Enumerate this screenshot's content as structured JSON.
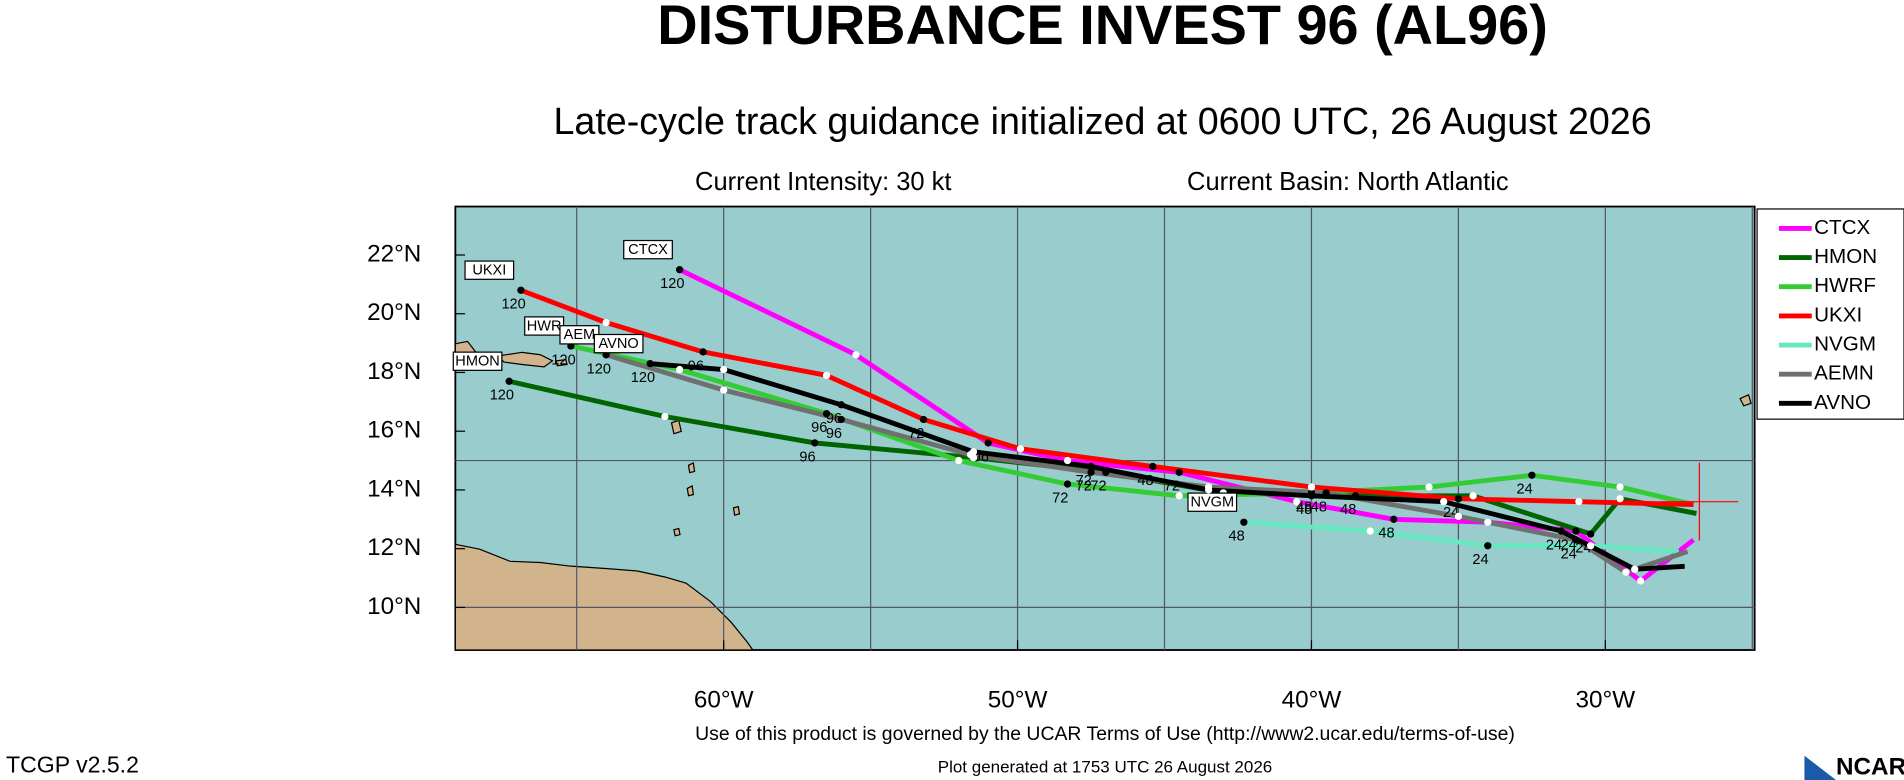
{
  "chart_data": {
    "type": "track_map",
    "title": "DISTURBANCE INVEST 96 (AL96)",
    "subtitle": "Late-cycle track guidance initialized at 0600 UTC, 26 August 2026",
    "intensity": "Current Intensity: 30 kt",
    "basin": "Current Basin: North Atlantic",
    "terms": "Use of this product is governed by the UCAR Terms of Use (http://www2.ucar.edu/terms-of-use)",
    "version": "TCGP v2.5.2",
    "generated": "Plot generated at 1753 UTC   26 August 2026",
    "logo": "NCAR",
    "xlim": [
      -69.13,
      -24.92
    ],
    "ylim": [
      8.55,
      23.65
    ],
    "xticks": [
      {
        "value": -60,
        "label": "60°W"
      },
      {
        "value": -50,
        "label": "50°W"
      },
      {
        "value": -40,
        "label": "40°W"
      },
      {
        "value": -30,
        "label": "30°W"
      }
    ],
    "yticks": [
      {
        "value": 10,
        "label": "10°N"
      },
      {
        "value": 12,
        "label": "12°N"
      },
      {
        "value": 14,
        "label": "14°N"
      },
      {
        "value": 16,
        "label": "16°N"
      },
      {
        "value": 18,
        "label": "18°N"
      },
      {
        "value": 20,
        "label": "20°N"
      },
      {
        "value": 22,
        "label": "22°N"
      }
    ],
    "xgrid": [
      -65,
      -60,
      -55,
      -50,
      -45,
      -40,
      -35,
      -30,
      -25
    ],
    "ygrid": [
      10,
      15
    ],
    "current_position": {
      "lon": -26.8,
      "lat": 13.6
    },
    "tau": [
      0,
      12,
      24,
      36,
      48,
      60,
      72,
      84,
      96,
      108,
      120
    ],
    "series": [
      {
        "name": "CTCX",
        "end_label": "CTCX",
        "color": "#ff00ff",
        "lon": [
          -27.0,
          -28.8,
          -31.0,
          -34.0,
          -37.2,
          -40.5,
          -44.5,
          -48.3,
          -51.0,
          -55.5,
          -61.5
        ],
        "lat": [
          12.3,
          10.9,
          12.6,
          12.9,
          13.0,
          13.6,
          14.6,
          15.0,
          15.6,
          18.6,
          21.5
        ]
      },
      {
        "name": "HMON",
        "end_label": "HMON",
        "color": "#006400",
        "lon": [
          -26.9,
          -29.5,
          -30.5,
          -34.5,
          -38.5,
          -43.0,
          -47.0,
          -51.5,
          -56.9,
          -62.0,
          -67.3
        ],
        "lat": [
          13.2,
          13.7,
          12.5,
          13.8,
          13.8,
          13.9,
          14.6,
          15.1,
          15.6,
          16.5,
          17.7
        ]
      },
      {
        "name": "HWRF",
        "end_label": "HWR",
        "color": "#33cc33",
        "lon": [
          -27.0,
          -29.5,
          -32.5,
          -36.0,
          -40.0,
          -44.5,
          -48.3,
          -52.0,
          -56.5,
          -61.5,
          -65.2
        ],
        "lat": [
          13.5,
          14.1,
          14.5,
          14.1,
          13.9,
          13.8,
          14.2,
          15.0,
          16.6,
          18.1,
          18.9
        ]
      },
      {
        "name": "UKXI",
        "end_label": "UKXI",
        "color": "#ff0000",
        "lon": [
          -27.0,
          -30.9,
          -35.0,
          -40.0,
          -45.4,
          -49.9,
          -53.2,
          -56.5,
          -60.7,
          -64.0,
          -66.9
        ],
        "lat": [
          13.5,
          13.6,
          13.7,
          14.1,
          14.8,
          15.4,
          16.4,
          17.9,
          18.7,
          19.7,
          20.8
        ]
      },
      {
        "name": "NVGM",
        "end_label": "NVGM",
        "color": "#66e8c0",
        "lon": [
          -27.5,
          -30.5,
          -34.0,
          -38.0,
          -42.3,
          null,
          null,
          null,
          null,
          null,
          null
        ],
        "lat": [
          11.9,
          12.1,
          12.1,
          12.6,
          12.9,
          null,
          null,
          null,
          null,
          null,
          null
        ]
      },
      {
        "name": "AEMN",
        "end_label": "AEM",
        "color": "#707070",
        "lon": [
          -27.2,
          -29.3,
          -31.0,
          -35.0,
          -39.5,
          -43.5,
          -47.5,
          -51.6,
          -56.0,
          -60.0,
          -64.0
        ],
        "lat": [
          11.9,
          11.2,
          12.3,
          13.1,
          13.9,
          14.1,
          14.6,
          15.2,
          16.4,
          17.4,
          18.6
        ]
      },
      {
        "name": "AVNO",
        "end_label": "AVNO",
        "color": "#000000",
        "lon": [
          -27.3,
          -29.0,
          -31.5,
          -35.5,
          -40.0,
          -43.5,
          -47.5,
          -51.5,
          -56.0,
          -60.0,
          -62.5
        ],
        "lat": [
          11.4,
          11.3,
          12.6,
          13.6,
          13.8,
          14.0,
          14.8,
          15.3,
          16.9,
          18.1,
          18.3
        ]
      }
    ]
  }
}
